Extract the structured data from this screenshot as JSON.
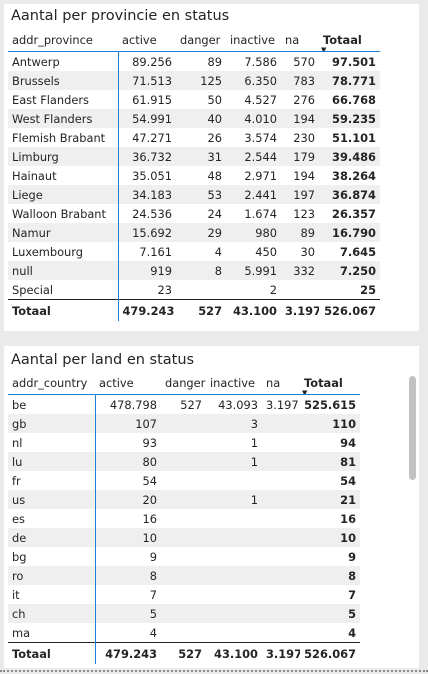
{
  "province_visual": {
    "title": "Aantal per provincie en status",
    "columns": [
      "addr_province",
      "active",
      "danger",
      "inactive",
      "na",
      "Totaal"
    ],
    "rows": [
      [
        "Antwerp",
        "89.256",
        "89",
        "7.586",
        "570",
        "97.501"
      ],
      [
        "Brussels",
        "71.513",
        "125",
        "6.350",
        "783",
        "78.771"
      ],
      [
        "East Flanders",
        "61.915",
        "50",
        "4.527",
        "276",
        "66.768"
      ],
      [
        "West Flanders",
        "54.991",
        "40",
        "4.010",
        "194",
        "59.235"
      ],
      [
        "Flemish Brabant",
        "47.271",
        "26",
        "3.574",
        "230",
        "51.101"
      ],
      [
        "Limburg",
        "36.732",
        "31",
        "2.544",
        "179",
        "39.486"
      ],
      [
        "Hainaut",
        "35.051",
        "48",
        "2.971",
        "194",
        "38.264"
      ],
      [
        "Liege",
        "34.183",
        "53",
        "2.441",
        "197",
        "36.874"
      ],
      [
        "Walloon Brabant",
        "24.536",
        "24",
        "1.674",
        "123",
        "26.357"
      ],
      [
        "Namur",
        "15.692",
        "29",
        "980",
        "89",
        "16.790"
      ],
      [
        "Luxembourg",
        "7.161",
        "4",
        "450",
        "30",
        "7.645"
      ],
      [
        "null",
        "919",
        "8",
        "5.991",
        "332",
        "7.250"
      ],
      [
        "Special",
        "23",
        "",
        "2",
        "",
        "25"
      ]
    ],
    "total": [
      "Totaal",
      "479.243",
      "527",
      "43.100",
      "3.197",
      "526.067"
    ]
  },
  "country_visual": {
    "title": "Aantal per land en status",
    "columns": [
      "addr_country",
      "active",
      "danger",
      "inactive",
      "na",
      "Totaal"
    ],
    "rows": [
      [
        "be",
        "478.798",
        "527",
        "43.093",
        "3.197",
        "525.615"
      ],
      [
        "gb",
        "107",
        "",
        "3",
        "",
        "110"
      ],
      [
        "nl",
        "93",
        "",
        "1",
        "",
        "94"
      ],
      [
        "lu",
        "80",
        "",
        "1",
        "",
        "81"
      ],
      [
        "fr",
        "54",
        "",
        "",
        "",
        "54"
      ],
      [
        "us",
        "20",
        "",
        "1",
        "",
        "21"
      ],
      [
        "es",
        "16",
        "",
        "",
        "",
        "16"
      ],
      [
        "de",
        "10",
        "",
        "",
        "",
        "10"
      ],
      [
        "bg",
        "9",
        "",
        "",
        "",
        "9"
      ],
      [
        "ro",
        "8",
        "",
        "",
        "",
        "8"
      ],
      [
        "it",
        "7",
        "",
        "",
        "",
        "7"
      ],
      [
        "ch",
        "5",
        "",
        "",
        "",
        "5"
      ],
      [
        "ma",
        "4",
        "",
        "",
        "",
        "4"
      ]
    ],
    "total": [
      "Totaal",
      "479.243",
      "527",
      "43.100",
      "3.197",
      "526.067"
    ]
  },
  "sort_icon": "sort-descending-icon"
}
